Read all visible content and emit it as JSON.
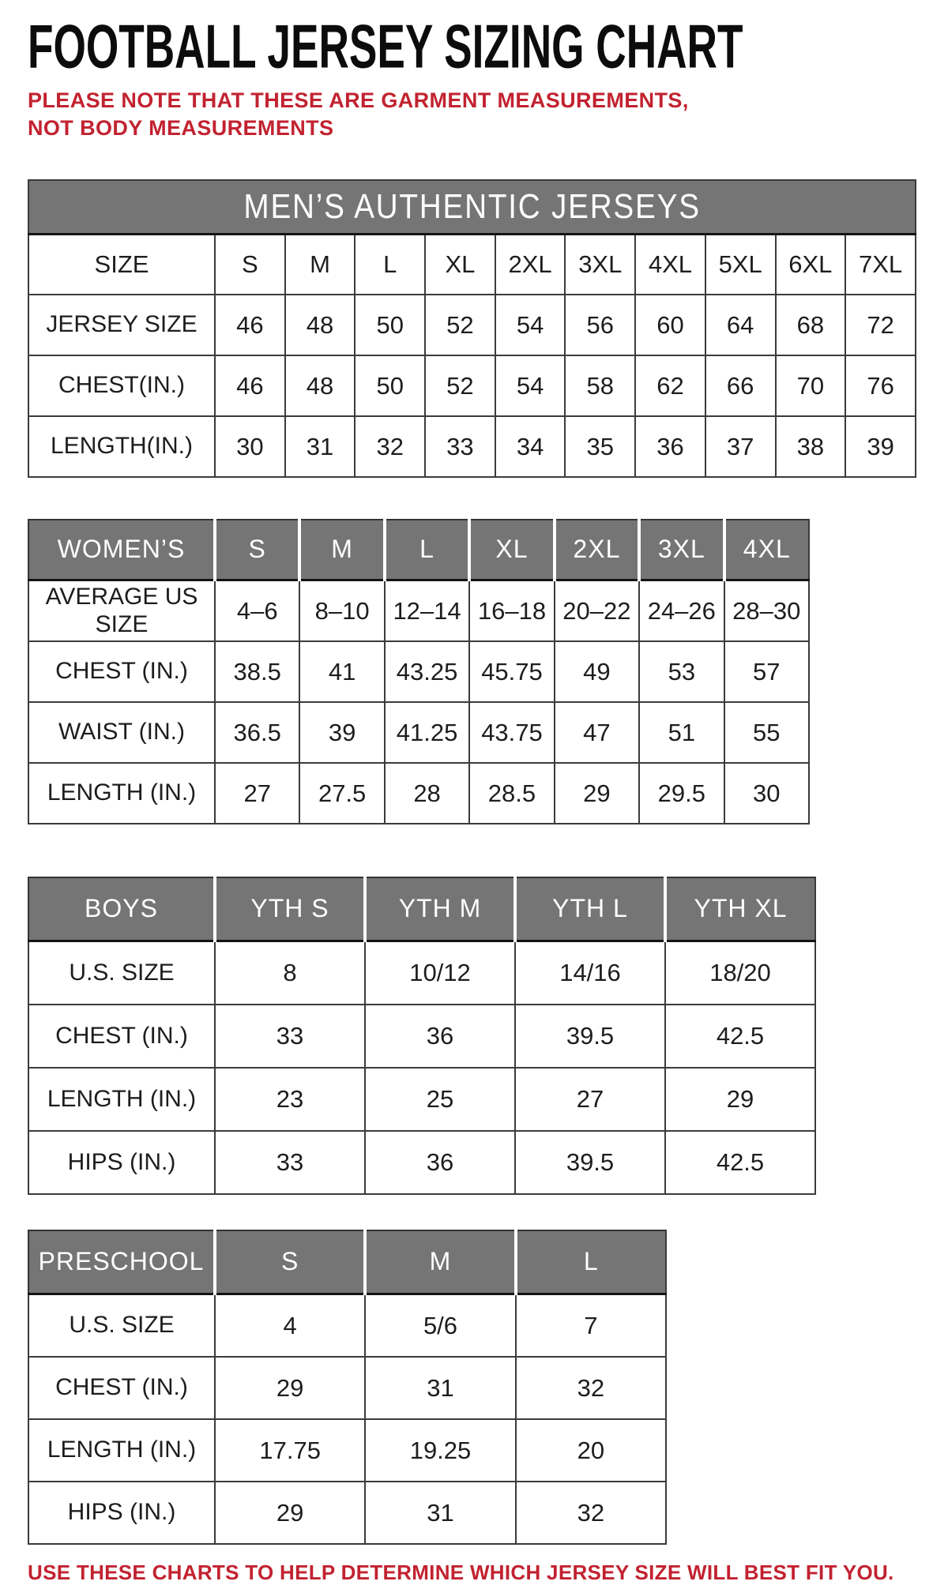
{
  "page": {
    "title": "FOOTBALL JERSEY SIZING CHART",
    "note": "PLEASE NOTE THAT THESE ARE GARMENT MEASUREMENTS, NOT BODY MEASUREMENTS",
    "footer": "USE THESE CHARTS TO HELP DETERMINE WHICH JERSEY SIZE WILL BEST FIT YOU.",
    "colors": {
      "accent_red": "#c22230",
      "header_gray": "#757575",
      "text_black": "#1d1d1d"
    }
  },
  "tables": [
    {
      "id": "mens",
      "banner": "MEN’S AUTHENTIC JERSEYS",
      "columns": {
        "label": "SIZE",
        "cells": [
          "S",
          "M",
          "L",
          "XL",
          "2XL",
          "3XL",
          "4XL",
          "5XL",
          "6XL",
          "7XL"
        ]
      },
      "rows": [
        {
          "label": "JERSEY SIZE",
          "cells": [
            "46",
            "48",
            "50",
            "52",
            "54",
            "56",
            "60",
            "64",
            "68",
            "72"
          ]
        },
        {
          "label": "CHEST(IN.)",
          "cells": [
            "46",
            "48",
            "50",
            "52",
            "54",
            "58",
            "62",
            "66",
            "70",
            "76"
          ]
        },
        {
          "label": "LENGTH(IN.)",
          "cells": [
            "30",
            "31",
            "32",
            "33",
            "34",
            "35",
            "36",
            "37",
            "38",
            "39"
          ]
        }
      ]
    },
    {
      "id": "womens",
      "columns": {
        "label": "WOMEN’S",
        "cells": [
          "S",
          "M",
          "L",
          "XL",
          "2XL",
          "3XL",
          "4XL"
        ]
      },
      "rows": [
        {
          "label": "AVERAGE US SIZE",
          "cells": [
            "4–6",
            "8–10",
            "12–14",
            "16–18",
            "20–22",
            "24–26",
            "28–30"
          ]
        },
        {
          "label": "CHEST (IN.)",
          "cells": [
            "38.5",
            "41",
            "43.25",
            "45.75",
            "49",
            "53",
            "57"
          ]
        },
        {
          "label": "WAIST (IN.)",
          "cells": [
            "36.5",
            "39",
            "41.25",
            "43.75",
            "47",
            "51",
            "55"
          ]
        },
        {
          "label": "LENGTH (IN.)",
          "cells": [
            "27",
            "27.5",
            "28",
            "28.5",
            "29",
            "29.5",
            "30"
          ]
        }
      ]
    },
    {
      "id": "boys",
      "columns": {
        "label": "BOYS",
        "cells": [
          "YTH S",
          "YTH M",
          "YTH L",
          "YTH XL"
        ]
      },
      "rows": [
        {
          "label": "U.S. SIZE",
          "cells": [
            "8",
            "10/12",
            "14/16",
            "18/20"
          ]
        },
        {
          "label": "CHEST (IN.)",
          "cells": [
            "33",
            "36",
            "39.5",
            "42.5"
          ]
        },
        {
          "label": "LENGTH (IN.)",
          "cells": [
            "23",
            "25",
            "27",
            "29"
          ]
        },
        {
          "label": "HIPS (IN.)",
          "cells": [
            "33",
            "36",
            "39.5",
            "42.5"
          ]
        }
      ]
    },
    {
      "id": "preschool",
      "columns": {
        "label": "PRESCHOOL",
        "cells": [
          "S",
          "M",
          "L"
        ]
      },
      "rows": [
        {
          "label": "U.S. SIZE",
          "cells": [
            "4",
            "5/6",
            "7"
          ]
        },
        {
          "label": "CHEST (IN.)",
          "cells": [
            "29",
            "31",
            "32"
          ]
        },
        {
          "label": "LENGTH (IN.)",
          "cells": [
            "17.75",
            "19.25",
            "20"
          ]
        },
        {
          "label": "HIPS (IN.)",
          "cells": [
            "29",
            "31",
            "32"
          ]
        }
      ]
    }
  ]
}
